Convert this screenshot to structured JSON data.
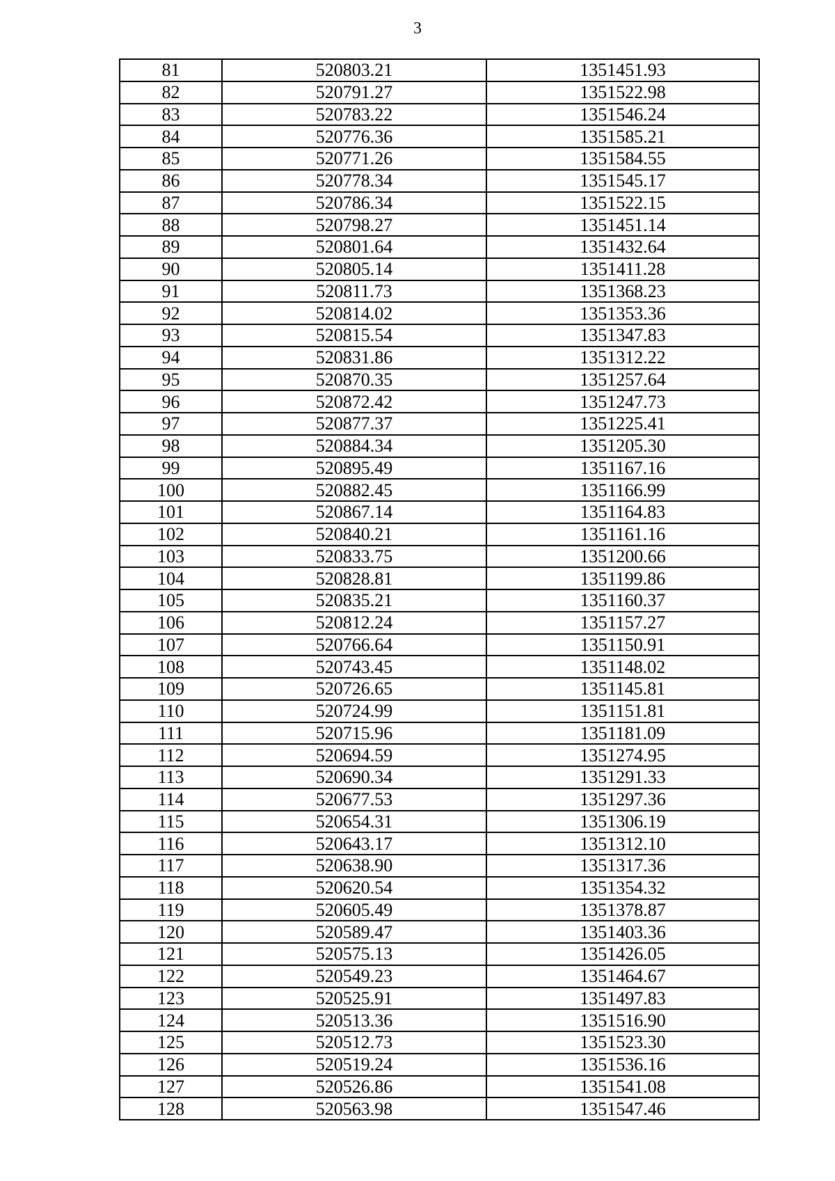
{
  "page_number": "3",
  "rows": [
    [
      "81",
      "520803.21",
      "1351451.93"
    ],
    [
      "82",
      "520791.27",
      "1351522.98"
    ],
    [
      "83",
      "520783.22",
      "1351546.24"
    ],
    [
      "84",
      "520776.36",
      "1351585.21"
    ],
    [
      "85",
      "520771.26",
      "1351584.55"
    ],
    [
      "86",
      "520778.34",
      "1351545.17"
    ],
    [
      "87",
      "520786.34",
      "1351522.15"
    ],
    [
      "88",
      "520798.27",
      "1351451.14"
    ],
    [
      "89",
      "520801.64",
      "1351432.64"
    ],
    [
      "90",
      "520805.14",
      "1351411.28"
    ],
    [
      "91",
      "520811.73",
      "1351368.23"
    ],
    [
      "92",
      "520814.02",
      "1351353.36"
    ],
    [
      "93",
      "520815.54",
      "1351347.83"
    ],
    [
      "94",
      "520831.86",
      "1351312.22"
    ],
    [
      "95",
      "520870.35",
      "1351257.64"
    ],
    [
      "96",
      "520872.42",
      "1351247.73"
    ],
    [
      "97",
      "520877.37",
      "1351225.41"
    ],
    [
      "98",
      "520884.34",
      "1351205.30"
    ],
    [
      "99",
      "520895.49",
      "1351167.16"
    ],
    [
      "100",
      "520882.45",
      "1351166.99"
    ],
    [
      "101",
      "520867.14",
      "1351164.83"
    ],
    [
      "102",
      "520840.21",
      "1351161.16"
    ],
    [
      "103",
      "520833.75",
      "1351200.66"
    ],
    [
      "104",
      "520828.81",
      "1351199.86"
    ],
    [
      "105",
      "520835.21",
      "1351160.37"
    ],
    [
      "106",
      "520812.24",
      "1351157.27"
    ],
    [
      "107",
      "520766.64",
      "1351150.91"
    ],
    [
      "108",
      "520743.45",
      "1351148.02"
    ],
    [
      "109",
      "520726.65",
      "1351145.81"
    ],
    [
      "110",
      "520724.99",
      "1351151.81"
    ],
    [
      "111",
      "520715.96",
      "1351181.09"
    ],
    [
      "112",
      "520694.59",
      "1351274.95"
    ],
    [
      "113",
      "520690.34",
      "1351291.33"
    ],
    [
      "114",
      "520677.53",
      "1351297.36"
    ],
    [
      "115",
      "520654.31",
      "1351306.19"
    ],
    [
      "116",
      "520643.17",
      "1351312.10"
    ],
    [
      "117",
      "520638.90",
      "1351317.36"
    ],
    [
      "118",
      "520620.54",
      "1351354.32"
    ],
    [
      "119",
      "520605.49",
      "1351378.87"
    ],
    [
      "120",
      "520589.47",
      "1351403.36"
    ],
    [
      "121",
      "520575.13",
      "1351426.05"
    ],
    [
      "122",
      "520549.23",
      "1351464.67"
    ],
    [
      "123",
      "520525.91",
      "1351497.83"
    ],
    [
      "124",
      "520513.36",
      "1351516.90"
    ],
    [
      "125",
      "520512.73",
      "1351523.30"
    ],
    [
      "126",
      "520519.24",
      "1351536.16"
    ],
    [
      "127",
      "520526.86",
      "1351541.08"
    ],
    [
      "128",
      "520563.98",
      "1351547.46"
    ]
  ]
}
